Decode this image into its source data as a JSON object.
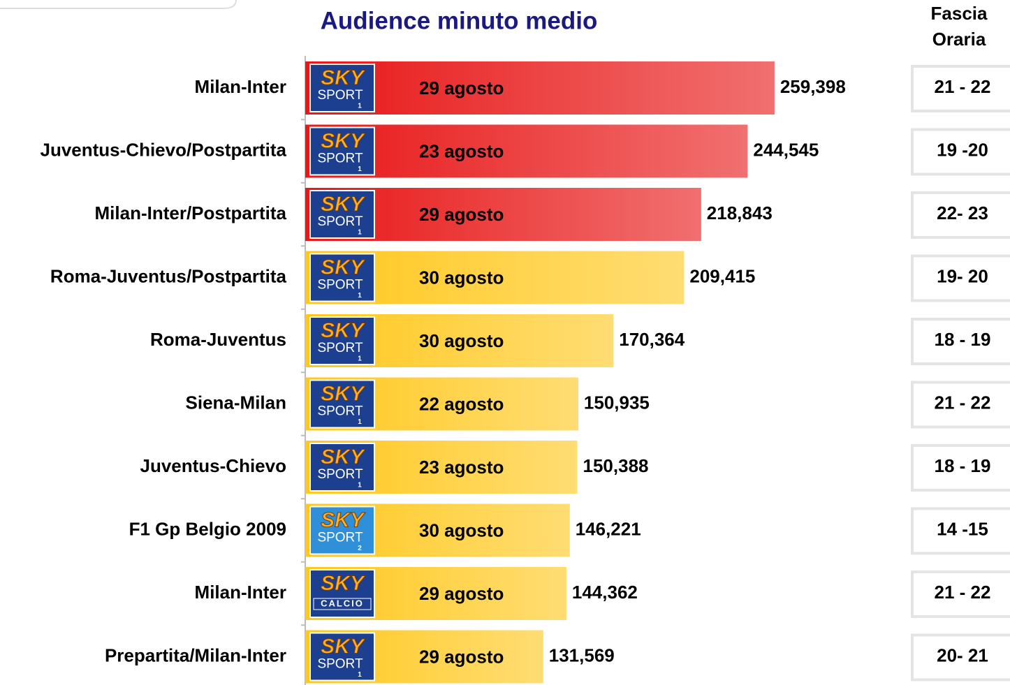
{
  "chart_data": {
    "type": "bar",
    "title": "Audience minuto medio",
    "categories": [
      "Milan-Inter",
      "Juventus-Chievo/Postpartita",
      "Milan-Inter/Postpartita",
      "Roma-Juventus/Postpartita",
      "Roma-Juventus",
      "Siena-Milan",
      "Juventus-Chievo",
      "F1 Gp Belgio 2009",
      "Milan-Inter",
      "Prepartita/Milan-Inter"
    ],
    "values": [
      259398,
      244545,
      218843,
      209415,
      170364,
      150935,
      150388,
      146221,
      144362,
      131569
    ],
    "value_labels": [
      "259,398",
      "244,545",
      "218,843",
      "209,415",
      "170,364",
      "150,935",
      "150,388",
      "146,221",
      "144,362",
      "131,569"
    ],
    "colors": [
      "#e81818",
      "#e81818",
      "#e81818",
      "#ffc81e",
      "#ffc81e",
      "#ffc81e",
      "#ffc81e",
      "#ffc81e",
      "#ffc81e",
      "#ffc81e"
    ],
    "dates": [
      "29 agosto",
      "23 agosto",
      "29 agosto",
      "30 agosto",
      "30 agosto",
      "22 agosto",
      "23 agosto",
      "30 agosto",
      "29 agosto",
      "29 agosto"
    ],
    "channels": [
      {
        "brand": "SKY",
        "name": "SPORT",
        "number": "1"
      },
      {
        "brand": "SKY",
        "name": "SPORT",
        "number": "1"
      },
      {
        "brand": "SKY",
        "name": "SPORT",
        "number": "1"
      },
      {
        "brand": "SKY",
        "name": "SPORT",
        "number": "1"
      },
      {
        "brand": "SKY",
        "name": "SPORT",
        "number": "1"
      },
      {
        "brand": "SKY",
        "name": "SPORT",
        "number": "1"
      },
      {
        "brand": "SKY",
        "name": "SPORT",
        "number": "1"
      },
      {
        "brand": "SKY",
        "name": "SPORT",
        "number": "2"
      },
      {
        "brand": "SKY",
        "name": "CALCIO"
      },
      {
        "brand": "SKY",
        "name": "SPORT",
        "number": "1"
      }
    ],
    "slot_header": [
      "Fascia",
      "Oraria"
    ],
    "slots": [
      "21 - 22",
      "19 -20",
      "22- 23",
      "19- 20",
      "18 - 19",
      "21 - 22",
      "18 - 19",
      "14 -15",
      "21 - 22",
      "20- 21"
    ],
    "xlim": [
      0,
      300000
    ]
  }
}
